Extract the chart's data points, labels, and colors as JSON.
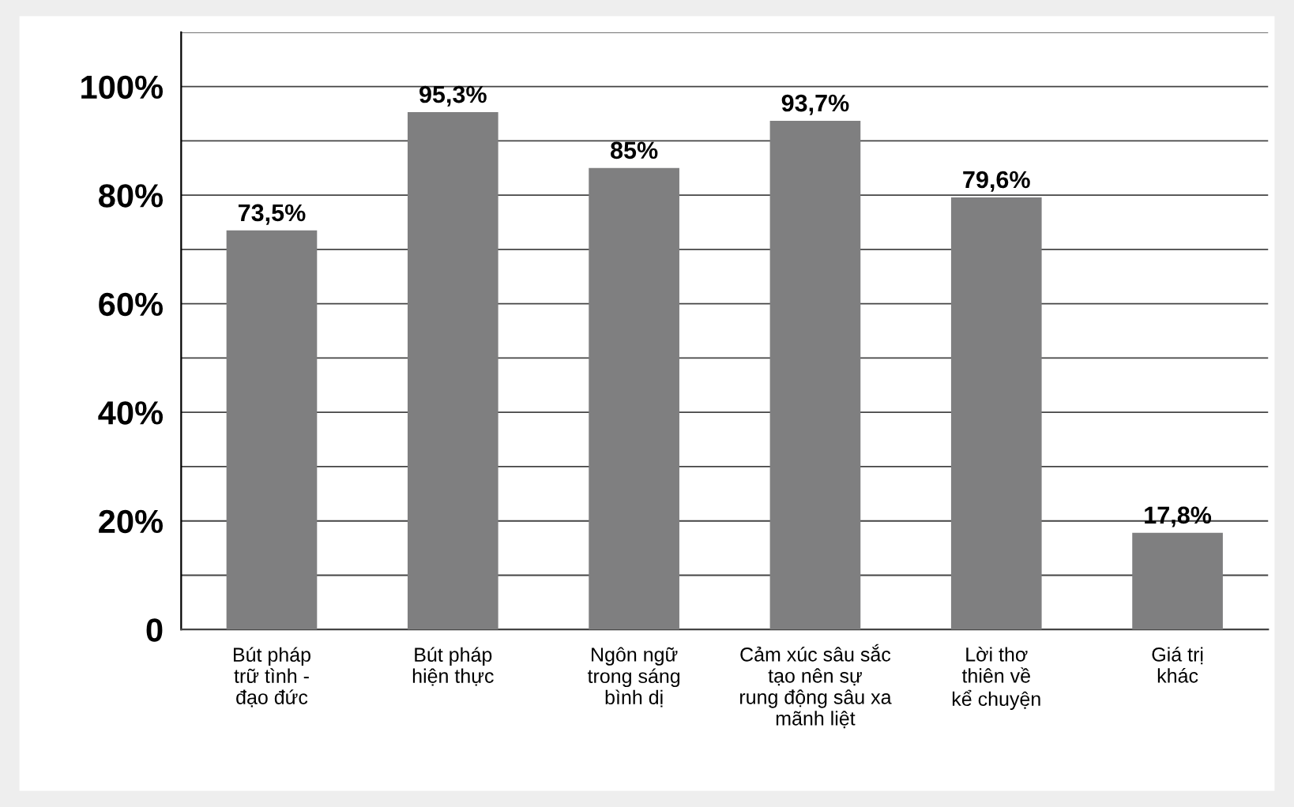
{
  "chart_data": {
    "type": "bar",
    "categories": [
      "Bút pháp\ntrữ tình -\nđạo đức",
      "Bút pháp\nhiện thực",
      "Ngôn ngữ\ntrong sáng\nbình dị",
      "Cảm xúc sâu sắc\ntạo nên sự\nrung động sâu xa\nmãnh liệt",
      "Lời thơ\nthiên về\nkể chuyện",
      "Giá trị\nkhác"
    ],
    "values": [
      73.5,
      95.3,
      85,
      93.7,
      79.6,
      17.8
    ],
    "value_labels": [
      "73,5%",
      "95,3%",
      "85%",
      "93,7%",
      "79,6%",
      "17,8%"
    ],
    "color": "#7f7f80",
    "ylim": [
      0,
      110
    ],
    "yticks": [
      {
        "value": 0,
        "label": "0"
      },
      {
        "value": 10,
        "label": null
      },
      {
        "value": 20,
        "label": "20%"
      },
      {
        "value": 30,
        "label": null
      },
      {
        "value": 40,
        "label": "40%"
      },
      {
        "value": 50,
        "label": null
      },
      {
        "value": 60,
        "label": "60%"
      },
      {
        "value": 70,
        "label": null
      },
      {
        "value": 80,
        "label": "80%"
      },
      {
        "value": 90,
        "label": null
      },
      {
        "value": 100,
        "label": "100%"
      },
      {
        "value": 110,
        "label": null
      }
    ],
    "grid": "y",
    "legend": false
  }
}
